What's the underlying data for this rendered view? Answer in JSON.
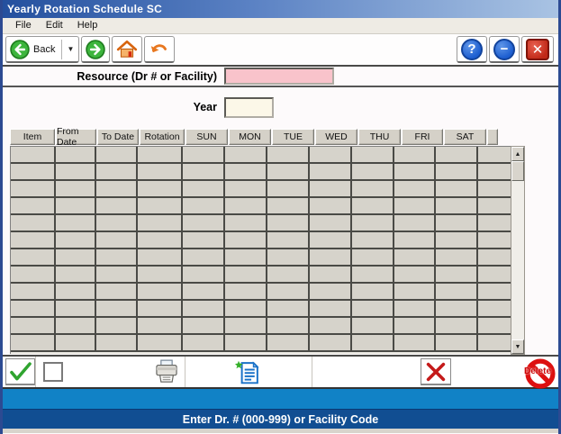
{
  "window": {
    "title": "Yearly Rotation Schedule SC",
    "controls": {
      "help_glyph": "?",
      "minimize_glyph": "−",
      "close_glyph": "✕"
    }
  },
  "menu": {
    "items": [
      {
        "label": "File"
      },
      {
        "label": "Edit"
      },
      {
        "label": "Help"
      }
    ]
  },
  "toolbar": {
    "back_label": "Back",
    "back_caret_glyph": "▼"
  },
  "form": {
    "resource_label": "Resource (Dr # or Facility)",
    "resource_value": "",
    "year_label": "Year",
    "year_value": ""
  },
  "table": {
    "columns": [
      "Item",
      "From Date",
      "To Date",
      "Rotation",
      "SUN",
      "MON",
      "TUE",
      "WED",
      "THU",
      "FRI",
      "SAT"
    ],
    "row_count": 12,
    "rows": []
  },
  "scrollbar": {
    "up_glyph": "▲",
    "down_glyph": "▼"
  },
  "actions": {
    "checkbox_checked": false,
    "delete_label": "Delete"
  },
  "status": {
    "message": "Enter Dr. # (000-999) or Facility Code"
  },
  "colors": {
    "titlebar_left": "#24509e",
    "titlebar_right": "#a9c3e3",
    "resource_input_bg": "#f9c3cb",
    "year_input_bg": "#fcf7e8",
    "band_light": "#1182c6",
    "band_dark": "#114e92",
    "grid_cell": "#d6d3cb",
    "grid_line": "#4a4a46",
    "accent_green": "#2fa42f",
    "accent_red": "#c41a1a"
  }
}
